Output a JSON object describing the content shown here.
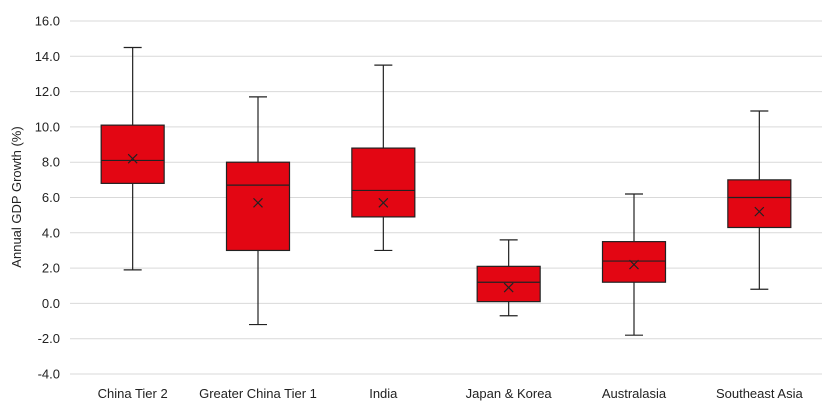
{
  "chart_data": {
    "type": "box",
    "title": "",
    "xlabel": "",
    "ylabel": "Annual GDP Growth (%)",
    "ylim": [
      -4.0,
      16.0
    ],
    "yticks": [
      -4.0,
      -2.0,
      0.0,
      2.0,
      4.0,
      6.0,
      8.0,
      10.0,
      12.0,
      14.0,
      16.0
    ],
    "ytick_labels": [
      "-4.0",
      "-2.0",
      "0.0",
      "2.0",
      "4.0",
      "6.0",
      "8.0",
      "10.0",
      "12.0",
      "14.0",
      "16.0"
    ],
    "grid": true,
    "box_color": "#e30613",
    "line_color": "#222222",
    "grid_color": "#d9d9d9",
    "categories": [
      "China Tier 2",
      "Greater China Tier 1",
      "India",
      "Japan & Korea",
      "Australasia",
      "Southeast Asia"
    ],
    "boxes": [
      {
        "min": 1.9,
        "q1": 6.8,
        "median": 8.1,
        "q3": 10.1,
        "max": 14.5,
        "mean": 8.2
      },
      {
        "min": -1.2,
        "q1": 3.0,
        "median": 6.7,
        "q3": 8.0,
        "max": 11.7,
        "mean": 5.7
      },
      {
        "min": 3.0,
        "q1": 4.9,
        "median": 6.4,
        "q3": 8.8,
        "max": 13.5,
        "mean": 5.7
      },
      {
        "min": -0.7,
        "q1": 0.1,
        "median": 1.2,
        "q3": 2.1,
        "max": 3.6,
        "mean": 0.9
      },
      {
        "min": -1.8,
        "q1": 1.2,
        "median": 2.4,
        "q3": 3.5,
        "max": 6.2,
        "mean": 2.2
      },
      {
        "min": 0.8,
        "q1": 4.3,
        "median": 6.0,
        "q3": 7.0,
        "max": 10.9,
        "mean": 5.2
      }
    ]
  }
}
